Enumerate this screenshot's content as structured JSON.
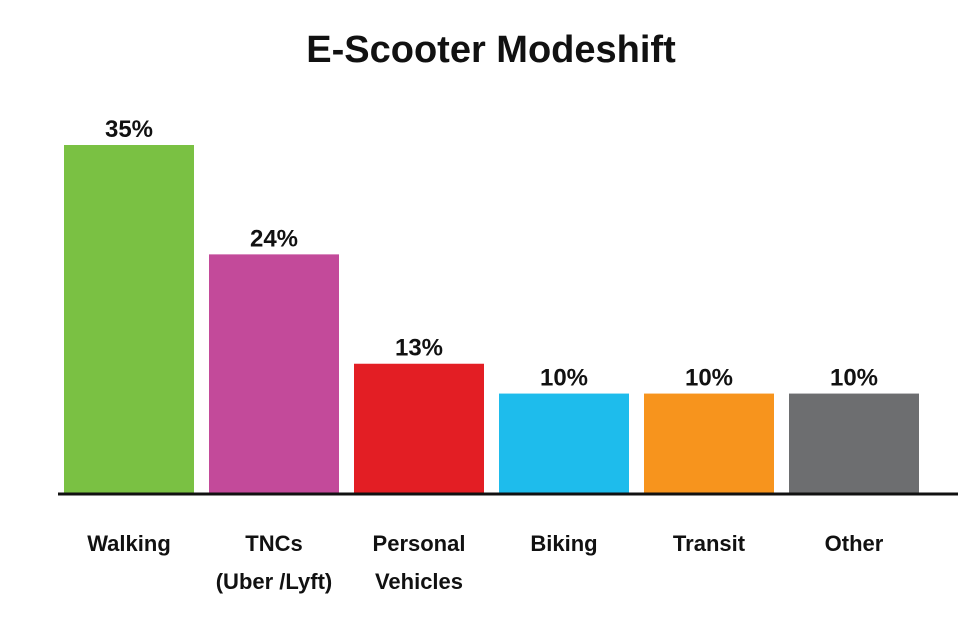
{
  "chart_data": {
    "type": "bar",
    "title": "E-Scooter Modeshift",
    "xlabel": "",
    "ylabel": "",
    "ylim": [
      0,
      35
    ],
    "grid": false,
    "legend": "none",
    "categories": [
      [
        "Walking"
      ],
      [
        "TNCs",
        "(Uber /Lyft)"
      ],
      [
        "Personal",
        "Vehicles"
      ],
      [
        "Biking"
      ],
      [
        "Transit"
      ],
      [
        "Other"
      ]
    ],
    "values": [
      35,
      24,
      13,
      10,
      10,
      10
    ],
    "value_labels": [
      "35%",
      "24%",
      "13%",
      "10%",
      "10%",
      "10%"
    ],
    "colors": [
      "#7ac143",
      "#c34a9a",
      "#e31e24",
      "#1ebcec",
      "#f7941d",
      "#6d6e70"
    ],
    "axis_color": "#111111"
  }
}
